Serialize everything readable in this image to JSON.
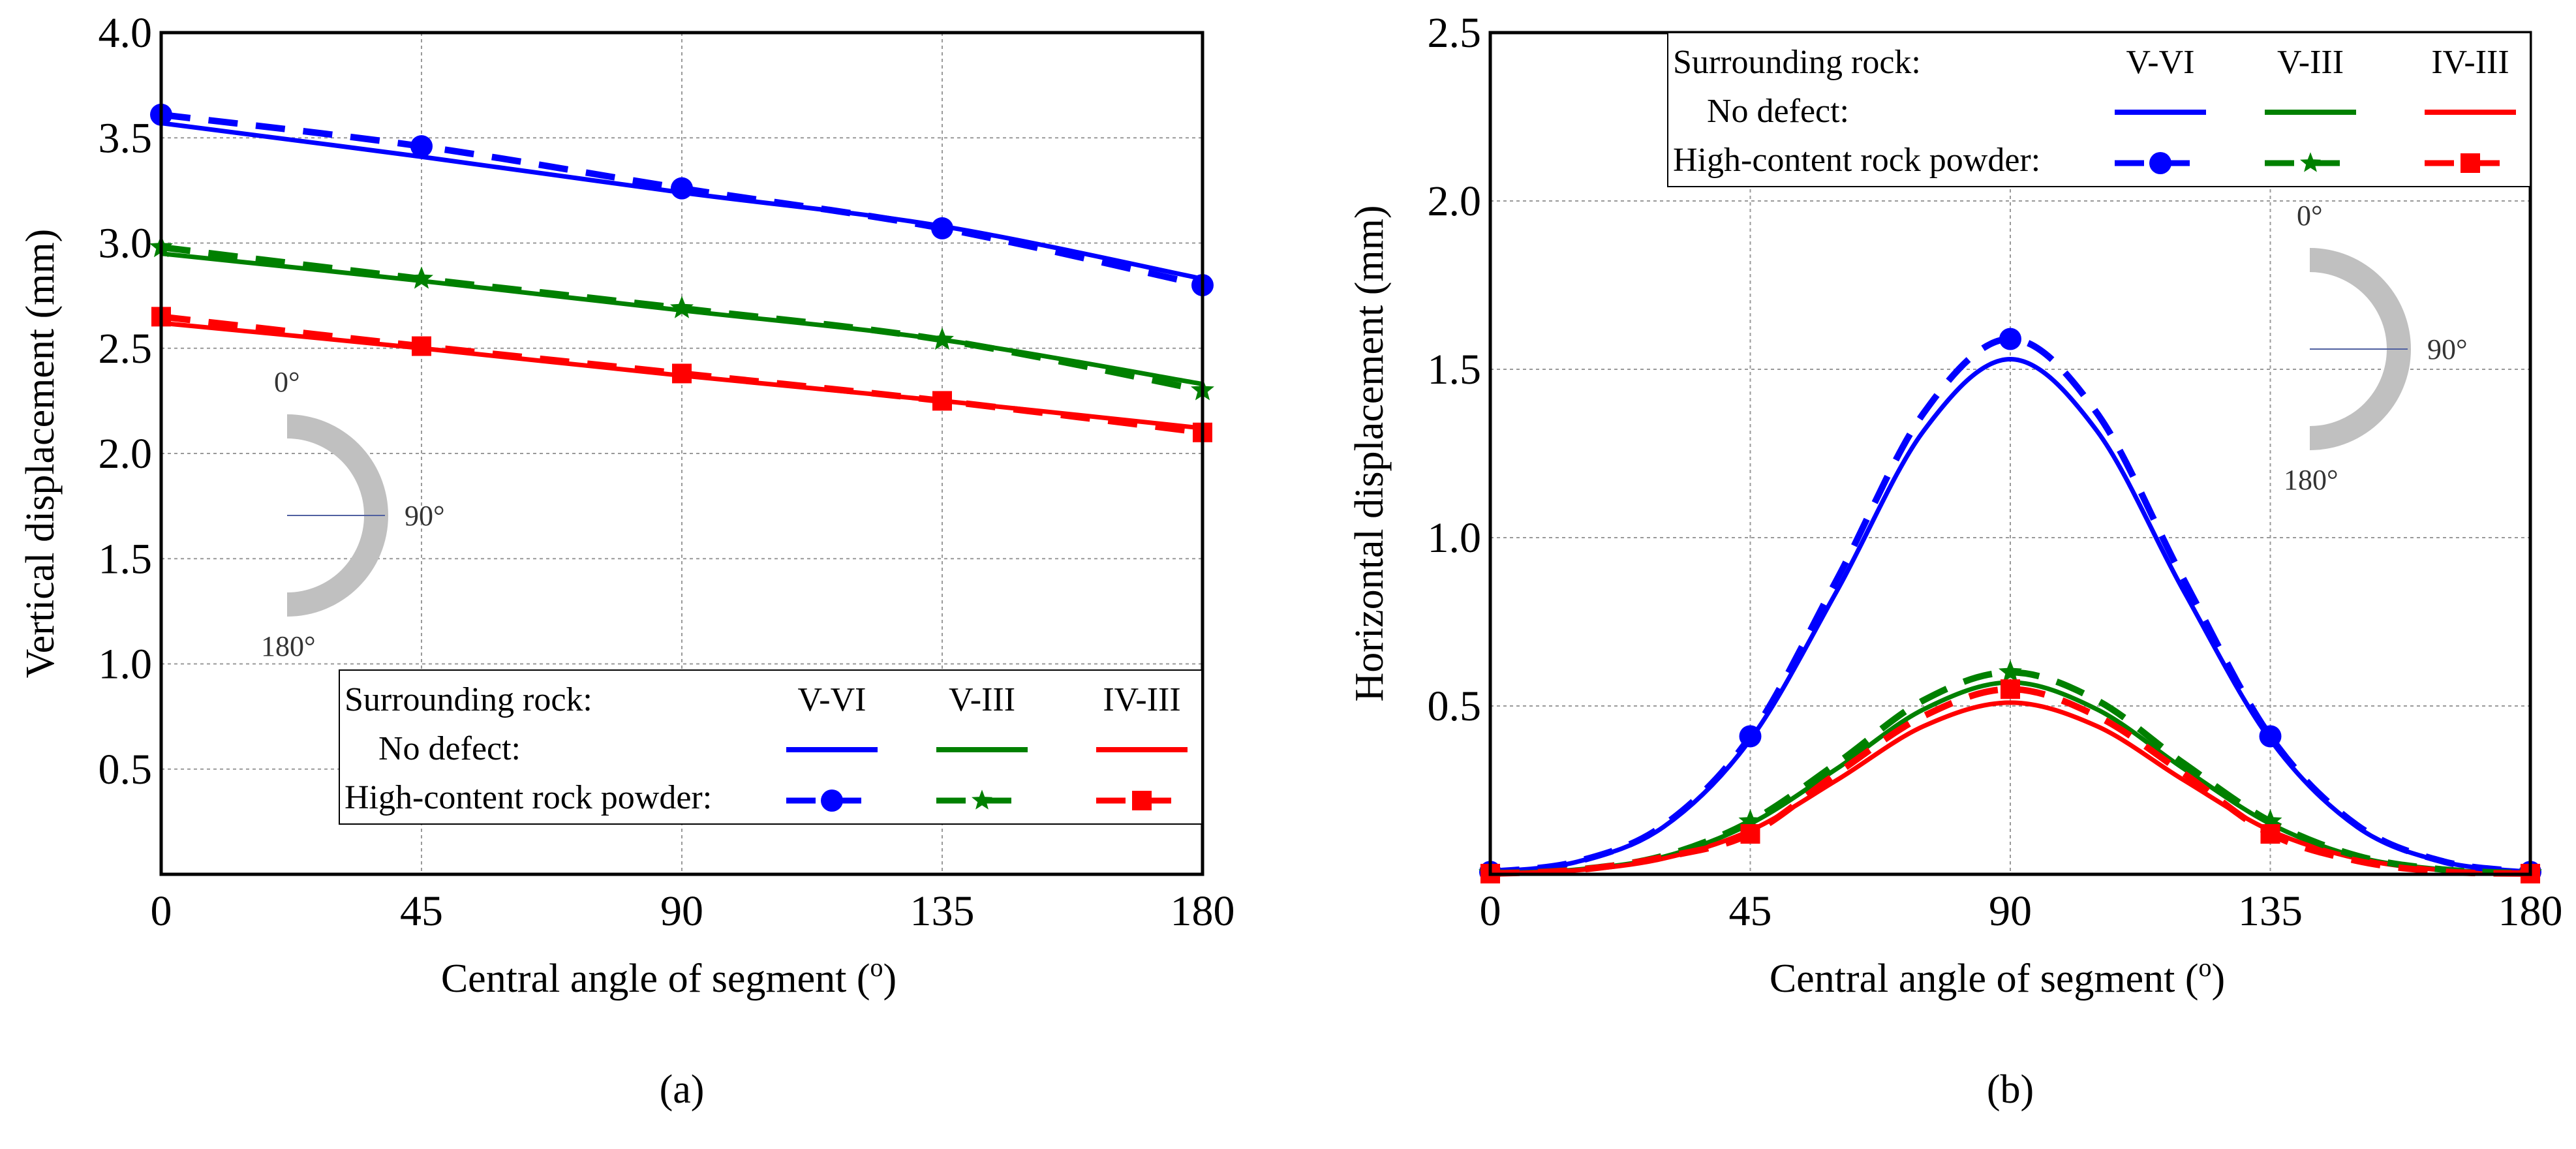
{
  "legend": {
    "header": "Surrounding rock:",
    "row1": "No defect:",
    "row2": "High-content rock powder:",
    "groups": [
      "V-VI",
      "V-III",
      "IV-III"
    ]
  },
  "inset": {
    "top": "0°",
    "mid": "90°",
    "bottom": "180°"
  },
  "colors": {
    "V-VI": "#0000ff",
    "V-III": "#008000",
    "IV-III": "#ff0000"
  },
  "chart_data": [
    {
      "type": "line",
      "panel": "(a)",
      "xlabel": "Central angle of segment (o)",
      "ylabel": "Vertical displacement (mm)",
      "xlim": [
        0,
        180
      ],
      "ylim": [
        0,
        4.0
      ],
      "xticks": [
        "0",
        "45",
        "90",
        "135",
        "180"
      ],
      "yticks": [
        "0.5",
        "1.0",
        "1.5",
        "2.0",
        "2.5",
        "3.0",
        "3.5",
        "4.0"
      ],
      "grid": true,
      "legend_position": "bottom-right",
      "x": [
        0,
        45,
        90,
        135,
        180
      ],
      "series": [
        {
          "name": "V-VI No defect",
          "group": "V-VI",
          "style": "solid",
          "values": [
            3.57,
            3.41,
            3.24,
            3.08,
            2.83
          ]
        },
        {
          "name": "V-III No defect",
          "group": "V-III",
          "style": "solid",
          "values": [
            2.95,
            2.82,
            2.68,
            2.54,
            2.33
          ]
        },
        {
          "name": "IV-III No defect",
          "group": "IV-III",
          "style": "solid",
          "values": [
            2.62,
            2.5,
            2.37,
            2.25,
            2.12
          ]
        },
        {
          "name": "V-VI High-content rock powder",
          "group": "V-VI",
          "style": "dashed",
          "marker": "circle",
          "values": [
            3.61,
            3.46,
            3.26,
            3.07,
            2.8
          ]
        },
        {
          "name": "V-III High-content rock powder",
          "group": "V-III",
          "style": "dashed",
          "marker": "star",
          "values": [
            2.98,
            2.83,
            2.69,
            2.54,
            2.3
          ]
        },
        {
          "name": "IV-III High-content rock powder",
          "group": "IV-III",
          "style": "dashed",
          "marker": "square",
          "values": [
            2.65,
            2.51,
            2.38,
            2.25,
            2.1
          ]
        }
      ]
    },
    {
      "type": "line",
      "panel": "(b)",
      "xlabel": "Central angle of segment (o)",
      "ylabel": "Horizontal displacement (mm)",
      "xlim": [
        0,
        180
      ],
      "ylim": [
        0,
        2.5
      ],
      "xticks": [
        "0",
        "45",
        "90",
        "135",
        "180"
      ],
      "yticks": [
        "0.5",
        "1.0",
        "1.5",
        "2.0",
        "2.5"
      ],
      "grid": true,
      "legend_position": "top-right",
      "x": [
        0,
        15,
        30,
        45,
        60,
        75,
        90,
        105,
        120,
        135,
        150,
        165,
        180
      ],
      "series": [
        {
          "name": "V-VI No defect",
          "group": "V-VI",
          "style": "solid",
          "values": [
            0.007,
            0.037,
            0.141,
            0.4,
            0.842,
            1.317,
            1.53,
            1.317,
            0.842,
            0.4,
            0.141,
            0.037,
            0.007
          ]
        },
        {
          "name": "V-III No defect",
          "group": "V-III",
          "style": "solid",
          "values": [
            0.003,
            0.014,
            0.052,
            0.15,
            0.314,
            0.49,
            0.57,
            0.49,
            0.314,
            0.15,
            0.052,
            0.014,
            0.003
          ]
        },
        {
          "name": "IV-III No defect",
          "group": "IV-III",
          "style": "solid",
          "values": [
            0.002,
            0.012,
            0.047,
            0.13,
            0.28,
            0.44,
            0.51,
            0.44,
            0.28,
            0.13,
            0.047,
            0.012,
            0.002
          ]
        },
        {
          "name": "V-VI High-content rock powder",
          "group": "V-VI",
          "style": "dashed",
          "marker": "circle",
          "values": [
            0.007,
            0.038,
            0.146,
            0.41,
            0.876,
            1.37,
            1.59,
            1.37,
            0.876,
            0.41,
            0.146,
            0.038,
            0.007
          ]
        },
        {
          "name": "V-III High-content rock powder",
          "group": "V-III",
          "style": "dashed",
          "marker": "star",
          "values": [
            0.003,
            0.014,
            0.055,
            0.157,
            0.33,
            0.517,
            0.6,
            0.517,
            0.33,
            0.157,
            0.055,
            0.014,
            0.003
          ]
        },
        {
          "name": "IV-III High-content rock powder",
          "group": "IV-III",
          "style": "dashed",
          "marker": "square",
          "values": [
            0.002,
            0.013,
            0.051,
            0.12,
            0.3,
            0.47,
            0.55,
            0.47,
            0.3,
            0.12,
            0.04,
            0.008,
            0.002
          ]
        }
      ]
    }
  ]
}
